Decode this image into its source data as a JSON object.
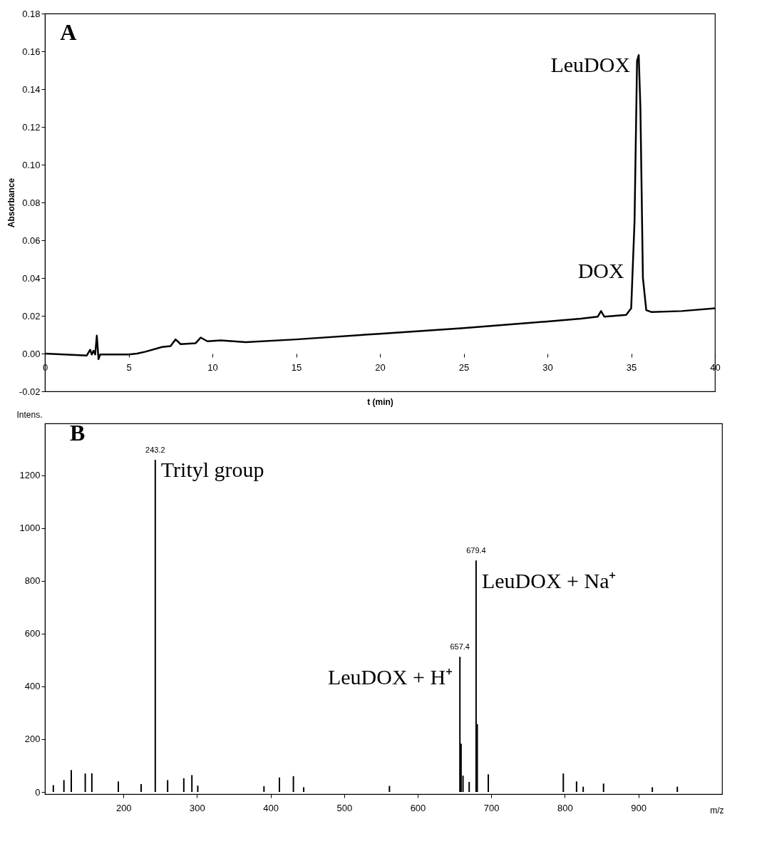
{
  "chart_data": [
    {
      "type": "line",
      "title": "A",
      "xlabel": "t (min)",
      "ylabel": "Absorbance",
      "series": [
        {
          "color": "#000000",
          "x": [
            0,
            2.5,
            2.7,
            2.8,
            2.9,
            3.0,
            3.1,
            3.2,
            3.3,
            5,
            5.5,
            6,
            7,
            7.5,
            7.8,
            8.1,
            9,
            9.3,
            9.7,
            10.5,
            12,
            15,
            20,
            25,
            30,
            32,
            33,
            33.2,
            33.4,
            34.7,
            35.0,
            35.2,
            35.35,
            35.45,
            35.55,
            35.7,
            35.9,
            36.2,
            38,
            40
          ],
          "values": [
            0.0,
            -0.001,
            0.002,
            -0.0005,
            0.0015,
            -0.0005,
            0.0095,
            -0.003,
            -0.0005,
            -0.0005,
            0.0,
            0.001,
            0.0035,
            0.004,
            0.0075,
            0.005,
            0.0055,
            0.0085,
            0.0065,
            0.007,
            0.006,
            0.0075,
            0.0105,
            0.0135,
            0.017,
            0.0185,
            0.0195,
            0.0225,
            0.0195,
            0.0205,
            0.024,
            0.07,
            0.155,
            0.158,
            0.13,
            0.04,
            0.023,
            0.022,
            0.0225,
            0.024
          ]
        }
      ],
      "xlim": [
        0,
        40
      ],
      "xticks": [
        0,
        5,
        10,
        15,
        20,
        25,
        30,
        35,
        40
      ],
      "ylim": [
        -0.02,
        0.18
      ],
      "yticks": [
        -0.02,
        {
          "value": 0,
          "label": "0.00"
        },
        0.02,
        0.04,
        0.06,
        0.08,
        {
          "value": 0.1,
          "label": "0.10"
        },
        0.12,
        0.14,
        0.16,
        0.18
      ],
      "annotations": [
        {
          "text": "LeuDOX",
          "x": 35.45,
          "y": 0.158
        },
        {
          "text": "DOX",
          "x": 33.2,
          "y": 0.0225
        }
      ]
    },
    {
      "type": "bar",
      "title": "B",
      "xlabel": "m/z",
      "ylabel": "Intens.",
      "series": [
        {
          "color": "#000000",
          "x": [
            104.6,
            119,
            129,
            148,
            157,
            193,
            224,
            243.2,
            260,
            282,
            293,
            301,
            391,
            412,
            431,
            445,
            561.6,
            657.4,
            659,
            661.6,
            670,
            679.4,
            681,
            696,
            798,
            816,
            825,
            852.7,
            919,
            953
          ],
          "values": [
            26,
            45,
            83,
            70,
            71,
            40,
            30,
            1258,
            45,
            52,
            64,
            24,
            22,
            55,
            60,
            18,
            23,
            512,
            183,
            62,
            38,
            877,
            257,
            67,
            70,
            40,
            20,
            32,
            18,
            20
          ]
        }
      ],
      "xlim": [
        98,
        1009
      ],
      "xticks": [
        200,
        300,
        400,
        500,
        600,
        700,
        800,
        900
      ],
      "ylim": [
        -8,
        1396
      ],
      "yticks": [
        0,
        200,
        400,
        600,
        800,
        1000,
        1200
      ],
      "annotations": [
        {
          "text": "243.2",
          "x": 243.2,
          "y": 1258
        },
        {
          "text": "Trityl group",
          "x": 243.2,
          "y": 1258
        },
        {
          "text": "657.4",
          "x": 657.4,
          "y": 512
        },
        {
          "text": "LeuDOX + H⁺",
          "x": 657.4,
          "y": 512
        },
        {
          "text": "679.4",
          "x": 679.4,
          "y": 877
        },
        {
          "text": "LeuDOX + Na⁺",
          "x": 679.4,
          "y": 877
        }
      ]
    }
  ]
}
